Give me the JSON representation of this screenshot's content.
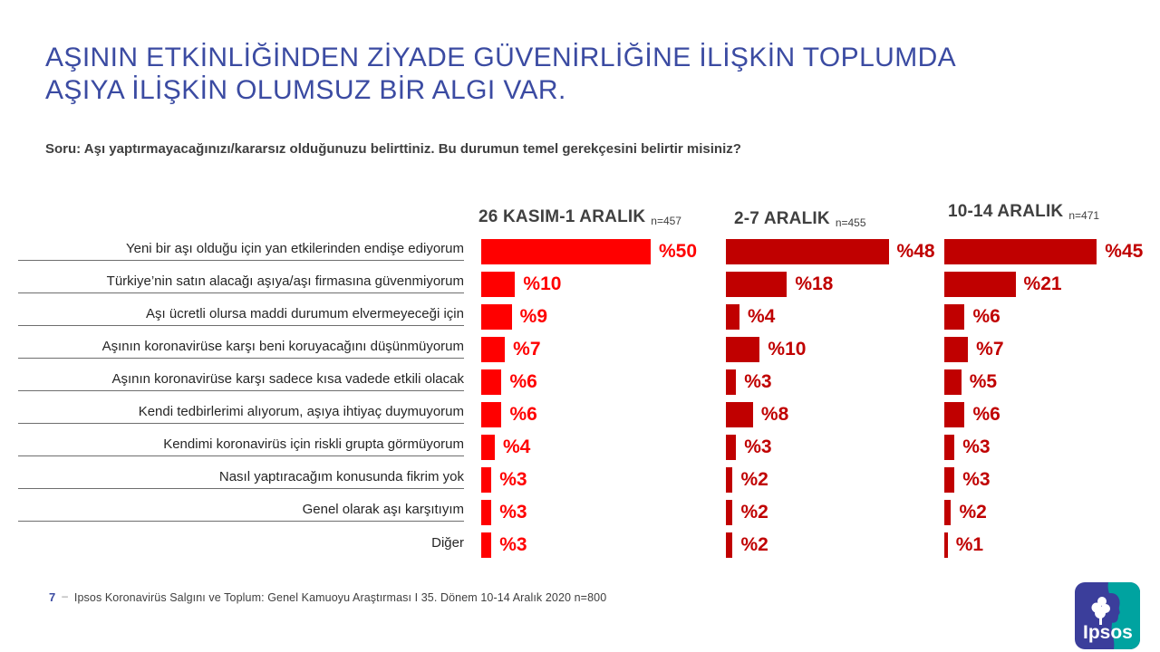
{
  "slide": {
    "title_line1": "AŞININ ETKİNLİĞİNDEN ZİYADE GÜVENİRLİĞİNE İLİŞKİN TOPLUMDA",
    "title_line2": "AŞIYA İLİŞKİN OLUMSUZ BİR ALGI VAR.",
    "question": "Soru: Aşı yaptırmayacağınızı/kararsız olduğunuzu belirttiniz. Bu durumun temel gerekçesini belirtir misiniz?",
    "page_number": "7",
    "page_dash": "–",
    "footer_text": "Ipsos Koronavirüs  Salgını ve Toplum:  Genel Kamuoyu  Araştırması I  35. Dönem  10-14 Aralık 2020   n=800",
    "logo_text": "Ipsos"
  },
  "colors": {
    "title_blue": "#3b4ba2",
    "bright_red": "#ff0000",
    "dark_red": "#c00000",
    "text_gray": "#404040",
    "underline_gray": "#6e6e6e",
    "logo_indigo": "#3b3e9b",
    "logo_teal": "#00a3a0"
  },
  "chart_data": {
    "type": "bar",
    "orientation": "horizontal",
    "value_prefix": "%",
    "xlim": [
      0,
      55
    ],
    "grid": false,
    "legend_position": "column-headers-top",
    "categories": [
      "Yeni bir aşı olduğu  için yan etkilerinden  endişe ediyorum",
      "Türkiye’nin  satın  alacağı  aşıya/aşı  firmasına  güvenmiyorum",
      "Aşı ücretli olursa maddi durumum  elvermeyeceği  için",
      "Aşının koronavirüse  karşı beni koruyacağını  düşünmüyorum",
      "Aşının koronavirüse  karşı sadece  kısa vadede  etkili olacak",
      "Kendi tedbirlerimi  alıyorum,  aşıya ihtiyaç duymuyorum",
      "Kendimi koronavirüs  için riskli grupta  görmüyorum",
      "Nasıl yaptıracağım  konusunda  fikrim yok",
      "Genel  olarak  aşı karşıtıyım",
      "Diğer"
    ],
    "series": [
      {
        "name": "26 KASIM-1  ARALIK",
        "n": "n=457",
        "color": "#ff0000",
        "values": [
          50,
          10,
          9,
          7,
          6,
          6,
          4,
          3,
          3,
          3
        ]
      },
      {
        "name": "2-7 ARALIK",
        "n": "n=455",
        "color": "#c00000",
        "values": [
          48,
          18,
          4,
          10,
          3,
          8,
          3,
          2,
          2,
          2
        ]
      },
      {
        "name": "10-14 ARALIK",
        "n": "n=471",
        "color": "#c00000",
        "values": [
          45,
          21,
          6,
          7,
          5,
          6,
          3,
          3,
          2,
          1
        ]
      }
    ]
  }
}
